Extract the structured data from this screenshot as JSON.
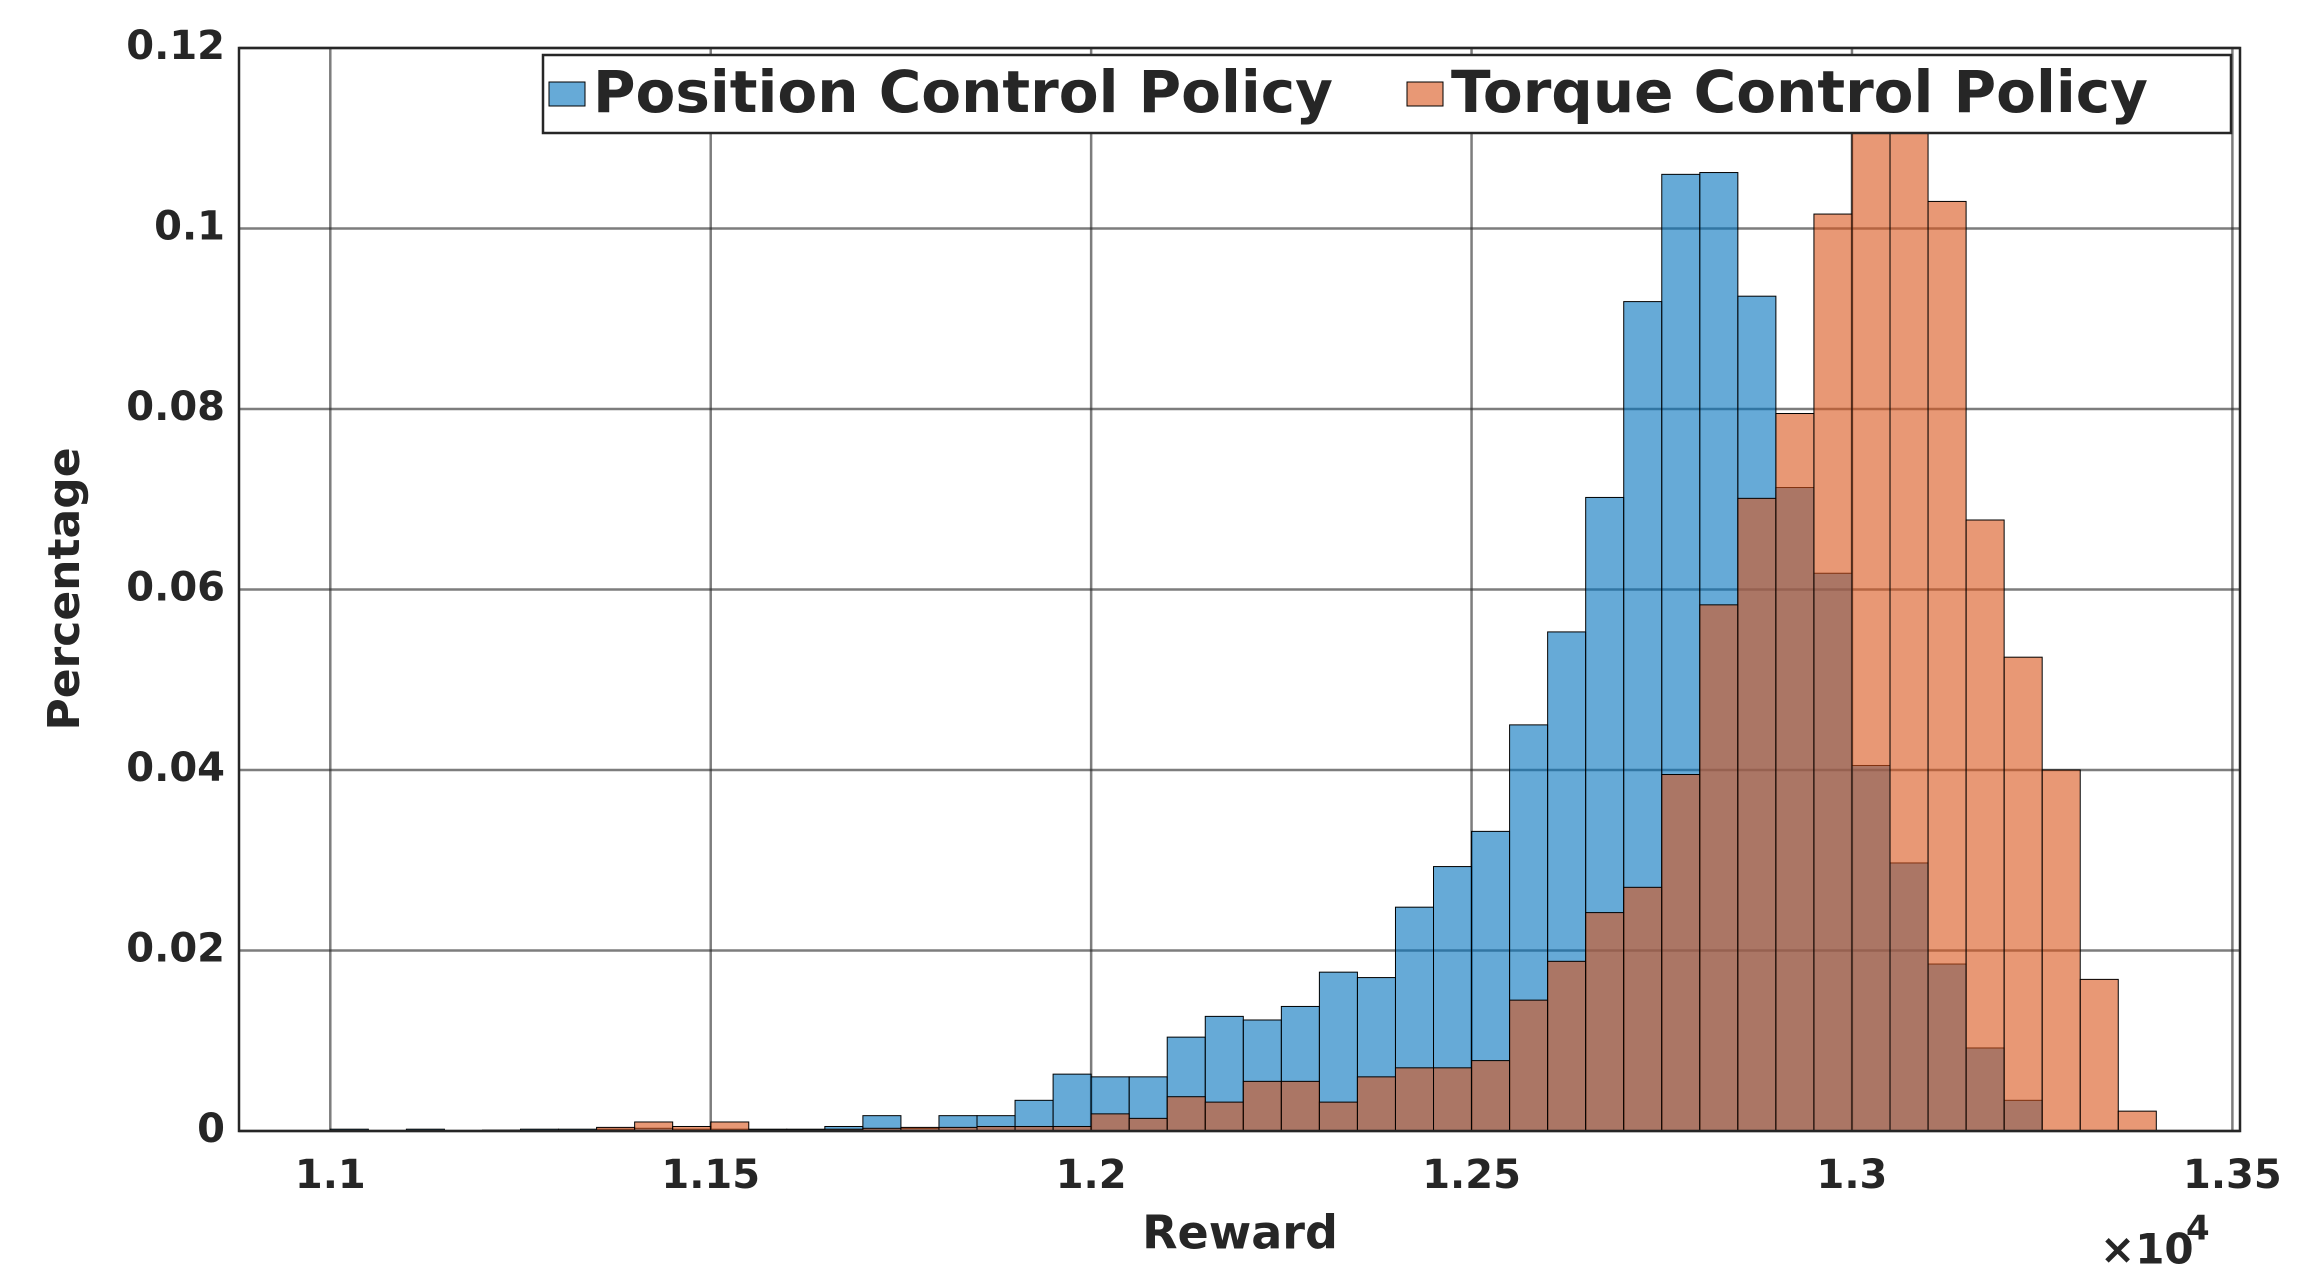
{
  "chart_data": {
    "type": "histogram",
    "xlabel": "Reward",
    "ylabel": "Percentage",
    "x_multiplier": "×10",
    "x_multiplier_exponent": "4",
    "bins": [
      1.1,
      1.105,
      1.11,
      1.115,
      1.12,
      1.125,
      1.13,
      1.135,
      1.14,
      1.145,
      1.15,
      1.155,
      1.16,
      1.165,
      1.17,
      1.175,
      1.18,
      1.185,
      1.19,
      1.195,
      1.2,
      1.205,
      1.21,
      1.215,
      1.22,
      1.225,
      1.23,
      1.235,
      1.24,
      1.245,
      1.25,
      1.255,
      1.26,
      1.265,
      1.27,
      1.275,
      1.28,
      1.285,
      1.29,
      1.295,
      1.3,
      1.305,
      1.31,
      1.315,
      1.32,
      1.325,
      1.33,
      1.335,
      1.34
    ],
    "series": [
      {
        "name": "Position Control Policy",
        "color": "#0072bd",
        "values": [
          0.0002,
          0,
          0.0002,
          0,
          0.0001,
          0.0002,
          0.0002,
          0.0002,
          0.0003,
          0.0002,
          0.0002,
          0.0002,
          0.0002,
          0.0005,
          0.0017,
          0.0003,
          0.0017,
          0.0017,
          0.0034,
          0.0063,
          0.006,
          0.006,
          0.0104,
          0.0127,
          0.0123,
          0.0138,
          0.0176,
          0.017,
          0.0248,
          0.0293,
          0.0332,
          0.045,
          0.0553,
          0.0702,
          0.0919,
          0.106,
          0.1062,
          0.0925,
          0.0713,
          0.0618,
          0.0405,
          0.0297,
          0.0185,
          0.0092,
          0.0034,
          0,
          0,
          0
        ]
      },
      {
        "name": "Torque Control Policy",
        "color": "#d95319",
        "values": [
          0,
          0,
          0,
          0,
          0,
          0,
          0,
          0.0004,
          0.001,
          0.0005,
          0.001,
          0.0001,
          0.0001,
          0.0002,
          0.0003,
          0.0004,
          0.0004,
          0.0005,
          0.0005,
          0.0005,
          0.0019,
          0.0014,
          0.0038,
          0.0032,
          0.0055,
          0.0055,
          0.0032,
          0.006,
          0.007,
          0.007,
          0.0078,
          0.0145,
          0.0188,
          0.0242,
          0.027,
          0.0395,
          0.0583,
          0.0701,
          0.0795,
          0.1016,
          0.113,
          0.114,
          0.103,
          0.0677,
          0.0525,
          0.04,
          0.0168,
          0.0022
        ]
      }
    ],
    "xlim": [
      1.088,
      1.351
    ],
    "ylim": [
      0,
      0.12
    ],
    "xticks": [
      1.1,
      1.15,
      1.2,
      1.25,
      1.3,
      1.35
    ],
    "yticks": [
      0,
      0.02,
      0.04,
      0.06,
      0.08,
      0.1,
      0.12
    ],
    "grid": true,
    "legend": "top-right",
    "opacity": 0.6
  }
}
